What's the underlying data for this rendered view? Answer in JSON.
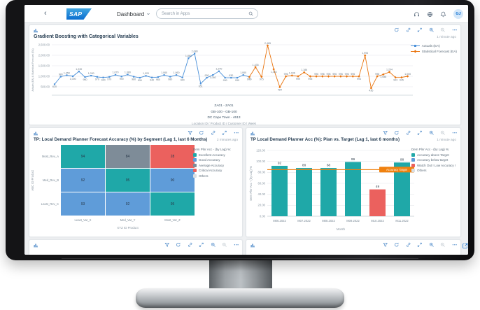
{
  "shell": {
    "back_label": "‹",
    "brand": "SAP",
    "app_title": "Dashboard",
    "search_placeholder": "Search in Apps",
    "icons": [
      "headset",
      "globe",
      "bell"
    ],
    "avatar_initials": "GJ"
  },
  "tiles": {
    "gradient": {
      "updated": "1 minute ago",
      "toolbar_icons": [
        "refresh",
        "link",
        "expand",
        "zoom-in",
        "zoom-out",
        "more"
      ]
    },
    "heatmap": {
      "updated": "2 minutes ago",
      "toolbar_icons": [
        "filter",
        "refresh",
        "link",
        "expand",
        "more"
      ]
    },
    "bars": {
      "updated": "1 minute ago",
      "toolbar_icons": [
        "filter",
        "refresh",
        "link",
        "expand",
        "zoom-in",
        "zoom-out",
        "more"
      ]
    },
    "cut_left": {
      "toolbar_icons": [
        "filter",
        "refresh",
        "link",
        "expand",
        "zoom-in",
        "zoom-out",
        "more"
      ]
    },
    "cut_right": {
      "toolbar_icons": [
        "filter",
        "refresh",
        "link",
        "expand",
        "zoom-in",
        "zoom-out",
        "more"
      ]
    }
  },
  "chart_data": [
    {
      "type": "line",
      "title": "Gradient Boosting with Categorical Variables",
      "ylabel": "Actuals (EA) & Statistical Forecast (EA)",
      "ylim": [
        500,
        2500
      ],
      "yticks": [
        2500,
        2000,
        1500,
        1000,
        500
      ],
      "x_hierarchy": [
        "ZA01 - ZA01",
        "GB-100 - GB-100",
        "DC Cape Town - 4613"
      ],
      "x_axis_caption": "Location ID / Product ID / Customer ID | Week",
      "legend_position": "right",
      "grid": true,
      "series": [
        {
          "name": "Actuals (EA)",
          "color": "#4A90D9",
          "marker": "square",
          "start_index": 0,
          "values": [
            620,
            980,
            1050,
            1000,
            1230,
            960,
            1030,
            970,
            940,
            970,
            1070,
            990,
            1080,
            980,
            930,
            1020,
            940,
            960,
            1060,
            980,
            1060,
            940,
            1860,
            2080,
            651,
            930,
            1060,
            1240,
            930,
            930,
            930,
            1060,
            970
          ]
        },
        {
          "name": "Statistical Forecast (EA)",
          "color": "#E9730C",
          "marker": "diamond",
          "start_index": 32,
          "values": [
            970,
            1435,
            975,
            2465,
            1334,
            484,
            996,
            1036,
            999,
            1186,
            996,
            996,
            996,
            996,
            996,
            996,
            996,
            996,
            994,
            1993,
            436,
            998,
            1088,
            1204,
            943,
            945,
            1000
          ]
        }
      ]
    },
    {
      "type": "heatmap",
      "title": "TP: Local Demand Planner Forecast Accuracy (%) by Segment (Lag 1, last 6 Months)",
      "rows": [
        "Most_Rev_A",
        "Med_Rev_B",
        "Least_Rev_C"
      ],
      "columns": [
        "Least_Var_X",
        "Med_Var_Y",
        "Most_Var_Z"
      ],
      "xlabel": "XYZ ID Product",
      "ylabel": "ABC ID Product",
      "values": [
        [
          94,
          84,
          28
        ],
        [
          92,
          95,
          90
        ],
        [
          93,
          92,
          95
        ]
      ],
      "cell_categories": [
        [
          "excellent",
          "average",
          "critical"
        ],
        [
          "good",
          "excellent",
          "good"
        ],
        [
          "good",
          "good",
          "excellent"
        ]
      ],
      "category_colors": {
        "excellent": "#1FA8A8",
        "good": "#5F9CD9",
        "average": "#7E8C98",
        "critical": "#EB615E",
        "others": "#D9DEE2"
      },
      "legend_title": "Dem Plnr Acc - (by Lag) %:",
      "legend": [
        {
          "label": "Excellent Accuracy",
          "key": "excellent"
        },
        {
          "label": "Good Accuracy",
          "key": "good"
        },
        {
          "label": "Average Accuracy",
          "key": "average"
        },
        {
          "label": "Critical Accuracy",
          "key": "critical"
        },
        {
          "label": "Others",
          "key": "others"
        }
      ]
    },
    {
      "type": "bar",
      "title": "TP Local Demand Planner Acc (%): Plan vs. Target (Lag 1, last 6 months)",
      "categories": [
        "M06.2022",
        "M07.2022",
        "M08.2022",
        "M09.2022",
        "M10.2022",
        "M11.2022"
      ],
      "values": [
        92,
        88,
        88,
        99,
        49,
        98
      ],
      "bar_categories": [
        "above",
        "above",
        "above",
        "above",
        "low",
        "above"
      ],
      "category_colors": {
        "above": "#1FA8A8",
        "below": "#5F9CD9",
        "low": "#EB615E",
        "others": "#D9DEE2"
      },
      "target": {
        "value": 85,
        "label": "Accuracy Target",
        "color": "#F0810F"
      },
      "ylim": [
        0,
        120
      ],
      "yticks": [
        0,
        20,
        40,
        60,
        80,
        100,
        120
      ],
      "xlabel": "Month",
      "ylabel": "Dem Plnr Acc - (by Lag) %",
      "grid": true,
      "legend_title": "Dem Plnr Acc - (by Lag) %:",
      "legend": [
        {
          "label": "Accuracy above Target",
          "key": "above"
        },
        {
          "label": "Accuracy below target",
          "key": "below"
        },
        {
          "label": "Watch Out ! Low Accuracy !",
          "key": "low"
        },
        {
          "label": "Others",
          "key": "others"
        }
      ]
    }
  ]
}
